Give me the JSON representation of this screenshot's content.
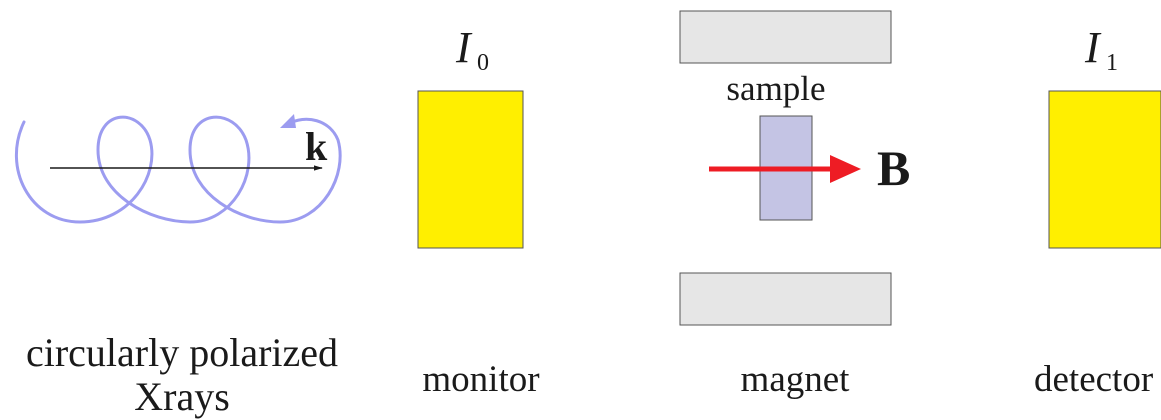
{
  "labels": {
    "source_line1": "circularly polarized",
    "source_line2": "Xrays",
    "monitor": "monitor",
    "magnet": "magnet",
    "detector": "detector",
    "sample": "sample",
    "wavevector": "k",
    "field": "B",
    "monitor_intensity_symbol": "I",
    "monitor_intensity_sub": "0",
    "detector_intensity_symbol": "I",
    "detector_intensity_sub": "1"
  },
  "colors": {
    "beam_helix": "#9c9cf0",
    "monitor_fill": "#ffef00",
    "detector_fill": "#ffef00",
    "sample_fill": "#c4c4e4",
    "magnet_fill": "#e6e6e6",
    "field_arrow": "#ee1c24",
    "wavevector_arrow": "#1a1a1a"
  }
}
